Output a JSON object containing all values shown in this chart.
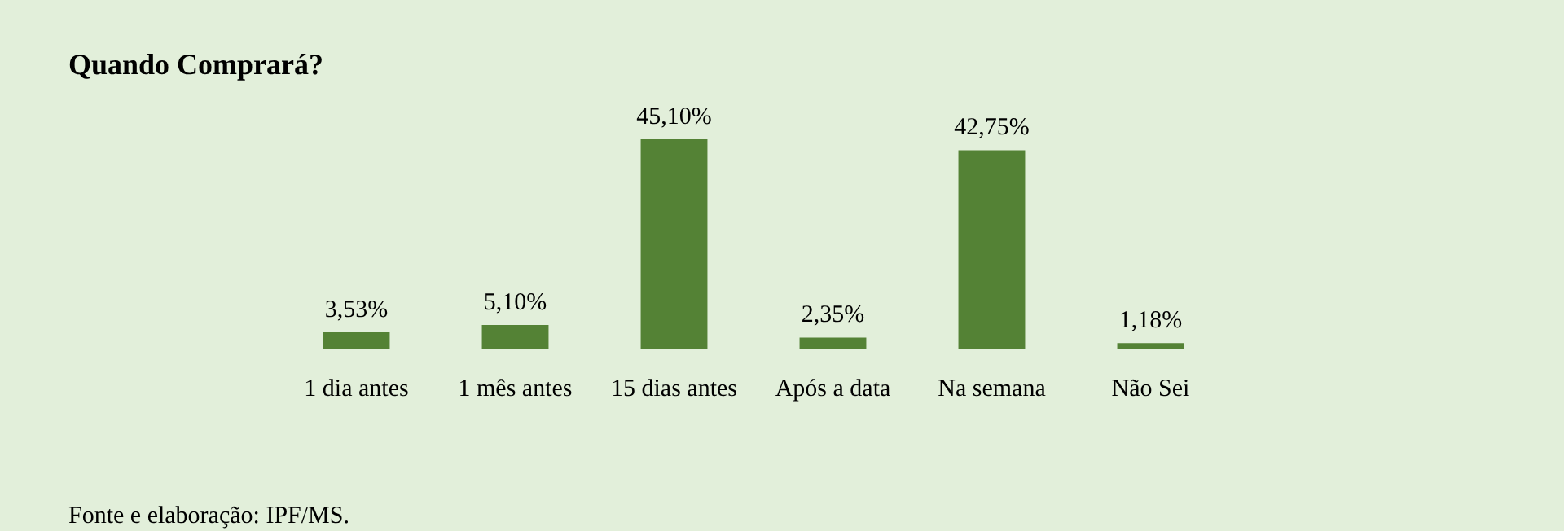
{
  "chart_data": {
    "type": "bar",
    "title": "Quando Comprará?",
    "categories": [
      "1 dia antes",
      "1 mês antes",
      "15 dias antes",
      "Após a data",
      "Na semana",
      "Não Sei"
    ],
    "values": [
      3.53,
      5.1,
      45.1,
      2.35,
      42.75,
      1.18
    ],
    "value_labels": [
      "3,53%",
      "5,10%",
      "45,10%",
      "2,35%",
      "42,75%",
      "1,18%"
    ],
    "color": "#548235",
    "grid": false,
    "legend": false,
    "annotations": [
      "Fonte e elaboração: IPF/MS."
    ]
  }
}
